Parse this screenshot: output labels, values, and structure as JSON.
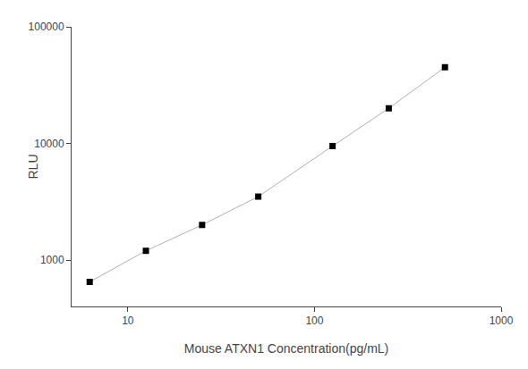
{
  "chart_data": {
    "type": "line",
    "x": [
      6.25,
      12.5,
      25,
      50,
      125,
      250,
      500
    ],
    "values": [
      650,
      1200,
      2000,
      3500,
      9500,
      20000,
      45000
    ],
    "color": "#b0b0b0",
    "colors": [
      "black",
      "black",
      "black",
      "black",
      "black",
      "black",
      "black"
    ],
    "marker": "square",
    "xlabel": "Mouse ATXN1 Concentration(pg/mL)",
    "ylabel": "RLU",
    "log": true,
    "xlim": [
      5,
      1000
    ],
    "ylim": [
      400,
      100000
    ],
    "xticks": [
      10,
      100,
      1000
    ],
    "yticks": [
      1000,
      10000,
      100000
    ],
    "grid": false
  }
}
